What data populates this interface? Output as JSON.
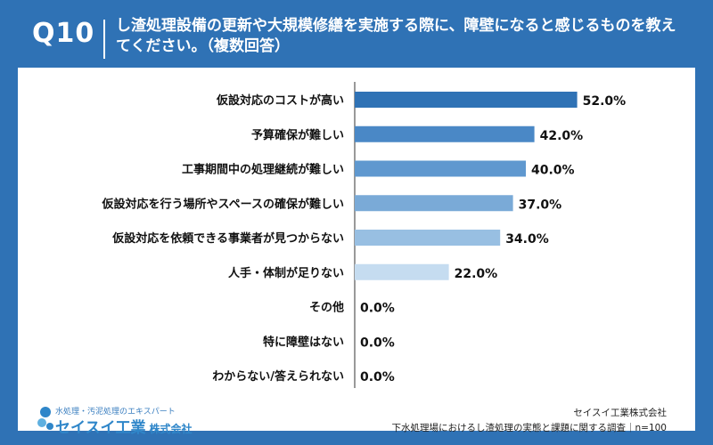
{
  "header": {
    "question_number": "Q10",
    "question_text": "し渣処理設備の更新や大規模修繕を実施する際に、障壁になると感じるものを教えてください。（複数回答）"
  },
  "chart_data": {
    "type": "bar",
    "orientation": "horizontal",
    "categories": [
      "仮設対応のコストが高い",
      "予算確保が難しい",
      "工事期間中の処理継続が難しい",
      "仮設対応を行う場所やスペースの確保が難しい",
      "仮設対応を依頼できる事業者が見つからない",
      "人手・体制が足りない",
      "その他",
      "特に障壁はない",
      "わからない/答えられない"
    ],
    "values": [
      52.0,
      42.0,
      40.0,
      37.0,
      34.0,
      22.0,
      0.0,
      0.0,
      0.0
    ],
    "value_labels": [
      "52.0%",
      "42.0%",
      "40.0%",
      "37.0%",
      "34.0%",
      "22.0%",
      "0.0%",
      "0.0%",
      "0.0%"
    ],
    "bar_colors": [
      "#2f72b5",
      "#4a88c6",
      "#5f98cf",
      "#7aaad7",
      "#98bfe2",
      "#c5dcf0",
      "#c5dcf0",
      "#c5dcf0",
      "#c5dcf0"
    ],
    "xlim": [
      0,
      100
    ],
    "unit": "%",
    "grid": false,
    "legend": "none"
  },
  "logo": {
    "tagline": "水処理・汚泥処理のエキスパート",
    "name": "セイスイ工業",
    "suffix": "株式会社"
  },
  "source": {
    "company": "セイスイ工業株式会社",
    "survey": "下水処理場におけるし渣処理の実態と課題に関する調査｜n=100"
  },
  "colors": {
    "frame": "#2f72b5",
    "axis": "#333333"
  }
}
